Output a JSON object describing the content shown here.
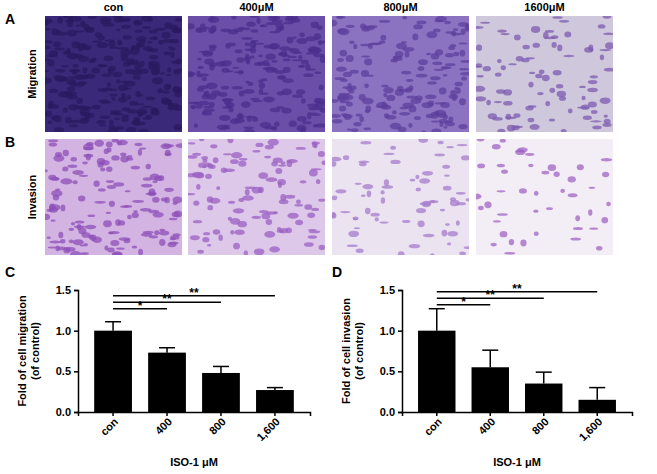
{
  "image_panels": {
    "labels": [
      "A",
      "B"
    ],
    "columns": [
      "con",
      "400μM",
      "800μM",
      "1600μM"
    ],
    "rows": [
      "Migration",
      "Invasion"
    ]
  },
  "chart_data": [
    {
      "type": "bar",
      "panel_label": "C",
      "x_label": "ISO-1 μM",
      "y_label": [
        "Fold of cell migration",
        "(of control)"
      ],
      "categories": [
        "con",
        "400",
        "800",
        "1,600"
      ],
      "values": [
        1.0,
        0.73,
        0.48,
        0.27
      ],
      "errors": [
        0.11,
        0.06,
        0.08,
        0.03
      ],
      "color": "#000000",
      "ylim": [
        0,
        1.5
      ],
      "yticks": [
        {
          "value": 0,
          "label": "0.0"
        },
        {
          "value": 0.5,
          "label": "0.5"
        },
        {
          "value": 1,
          "label": "1.0"
        },
        {
          "value": 1.5,
          "label": "1.5"
        }
      ],
      "annotations": [
        {
          "text": "*",
          "categories": [
            "con",
            "400"
          ]
        },
        {
          "text": "**",
          "categories": [
            "con",
            "800"
          ]
        },
        {
          "text": "**",
          "categories": [
            "con",
            "1,600"
          ]
        }
      ]
    },
    {
      "type": "bar",
      "panel_label": "D",
      "x_label": "ISO-1 μM",
      "y_label": [
        "Fold of cell invasion",
        "(of control)"
      ],
      "categories": [
        "con",
        "400",
        "800",
        "1,600"
      ],
      "values": [
        1.0,
        0.55,
        0.35,
        0.15
      ],
      "errors": [
        0.27,
        0.21,
        0.14,
        0.15
      ],
      "color": "#000000",
      "ylim": [
        0,
        1.5
      ],
      "yticks": [
        {
          "value": 0,
          "label": "0.0"
        },
        {
          "value": 0.5,
          "label": "0.5"
        },
        {
          "value": 1,
          "label": "1.0"
        },
        {
          "value": 1.5,
          "label": "1.5"
        }
      ],
      "annotations": [
        {
          "text": "*",
          "categories": [
            "con",
            "400"
          ]
        },
        {
          "text": "**",
          "categories": [
            "con",
            "800"
          ]
        },
        {
          "text": "**",
          "categories": [
            "con",
            "1,600"
          ]
        }
      ]
    }
  ]
}
